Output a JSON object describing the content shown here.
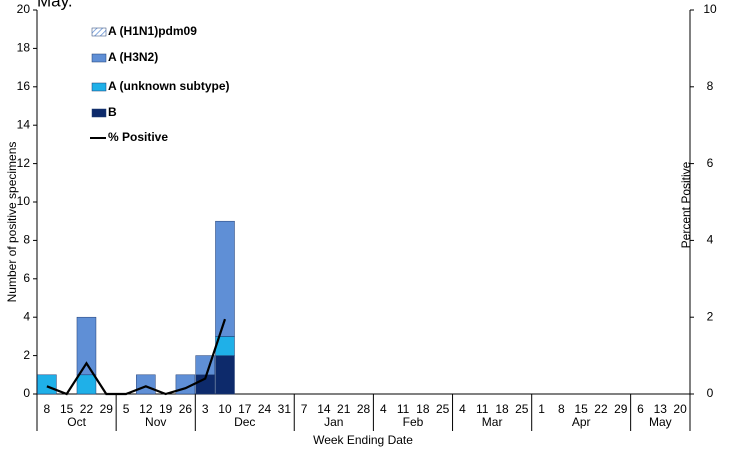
{
  "chart_data": {
    "type": "bar",
    "title": "May.",
    "categories": [
      "8",
      "15",
      "22",
      "29",
      "5",
      "12",
      "19",
      "26",
      "3",
      "10",
      "17",
      "24",
      "31",
      "7",
      "14",
      "21",
      "28",
      "4",
      "11",
      "18",
      "25",
      "4",
      "11",
      "18",
      "25",
      "1",
      "8",
      "15",
      "22",
      "29",
      "6",
      "13",
      "20"
    ],
    "months": [
      "Oct",
      "Nov",
      "Dec",
      "Jan",
      "Feb",
      "Mar",
      "Apr",
      "May"
    ],
    "stacked": true,
    "series": [
      {
        "name": "B",
        "color": "#0d2a6b",
        "values": [
          0,
          0,
          0,
          0,
          0,
          0,
          0,
          0,
          1,
          2,
          0,
          0,
          0,
          0,
          0,
          0,
          0,
          0,
          0,
          0,
          0,
          0,
          0,
          0,
          0,
          0,
          0,
          0,
          0,
          0,
          0,
          0,
          0
        ]
      },
      {
        "name": "A (unknown subtype)",
        "color": "#1fb0e8",
        "values": [
          1,
          0,
          1,
          0,
          0,
          0,
          0,
          0,
          0,
          1,
          0,
          0,
          0,
          0,
          0,
          0,
          0,
          0,
          0,
          0,
          0,
          0,
          0,
          0,
          0,
          0,
          0,
          0,
          0,
          0,
          0,
          0,
          0
        ]
      },
      {
        "name": "A (H3N2)",
        "color": "#5f8fd6",
        "values": [
          0,
          0,
          3,
          0,
          0,
          1,
          0,
          1,
          1,
          6,
          0,
          0,
          0,
          0,
          0,
          0,
          0,
          0,
          0,
          0,
          0,
          0,
          0,
          0,
          0,
          0,
          0,
          0,
          0,
          0,
          0,
          0,
          0
        ]
      },
      {
        "name": "A (H1N1)pdm09",
        "color": "#c6d5ee",
        "pattern": "hatch",
        "values": [
          0,
          0,
          0,
          0,
          0,
          0,
          0,
          0,
          0,
          0,
          0,
          0,
          0,
          0,
          0,
          0,
          0,
          0,
          0,
          0,
          0,
          0,
          0,
          0,
          0,
          0,
          0,
          0,
          0,
          0,
          0,
          0,
          0
        ]
      },
      {
        "name": "% Positive",
        "type": "line",
        "axis": "y2",
        "color": "#000000",
        "values": [
          0.2,
          0,
          0.8,
          0,
          0,
          0.2,
          0,
          0.15,
          0.4,
          1.95,
          null,
          null,
          null,
          null,
          null,
          null,
          null,
          null,
          null,
          null,
          null,
          null,
          null,
          null,
          null,
          null,
          null,
          null,
          null,
          null,
          null,
          null,
          null
        ]
      }
    ],
    "legend_order": [
      3,
      2,
      1,
      0,
      4
    ],
    "ylabel": "Number of positive specimens",
    "y2label": "Percent Positive",
    "xlabel": "Week Ending Date",
    "ylim": [
      0,
      20
    ],
    "yticks": [
      0,
      2,
      4,
      6,
      8,
      10,
      12,
      14,
      16,
      18,
      20
    ],
    "y2lim": [
      0,
      10
    ],
    "y2ticks": [
      0,
      2,
      4,
      6,
      8,
      10
    ]
  }
}
